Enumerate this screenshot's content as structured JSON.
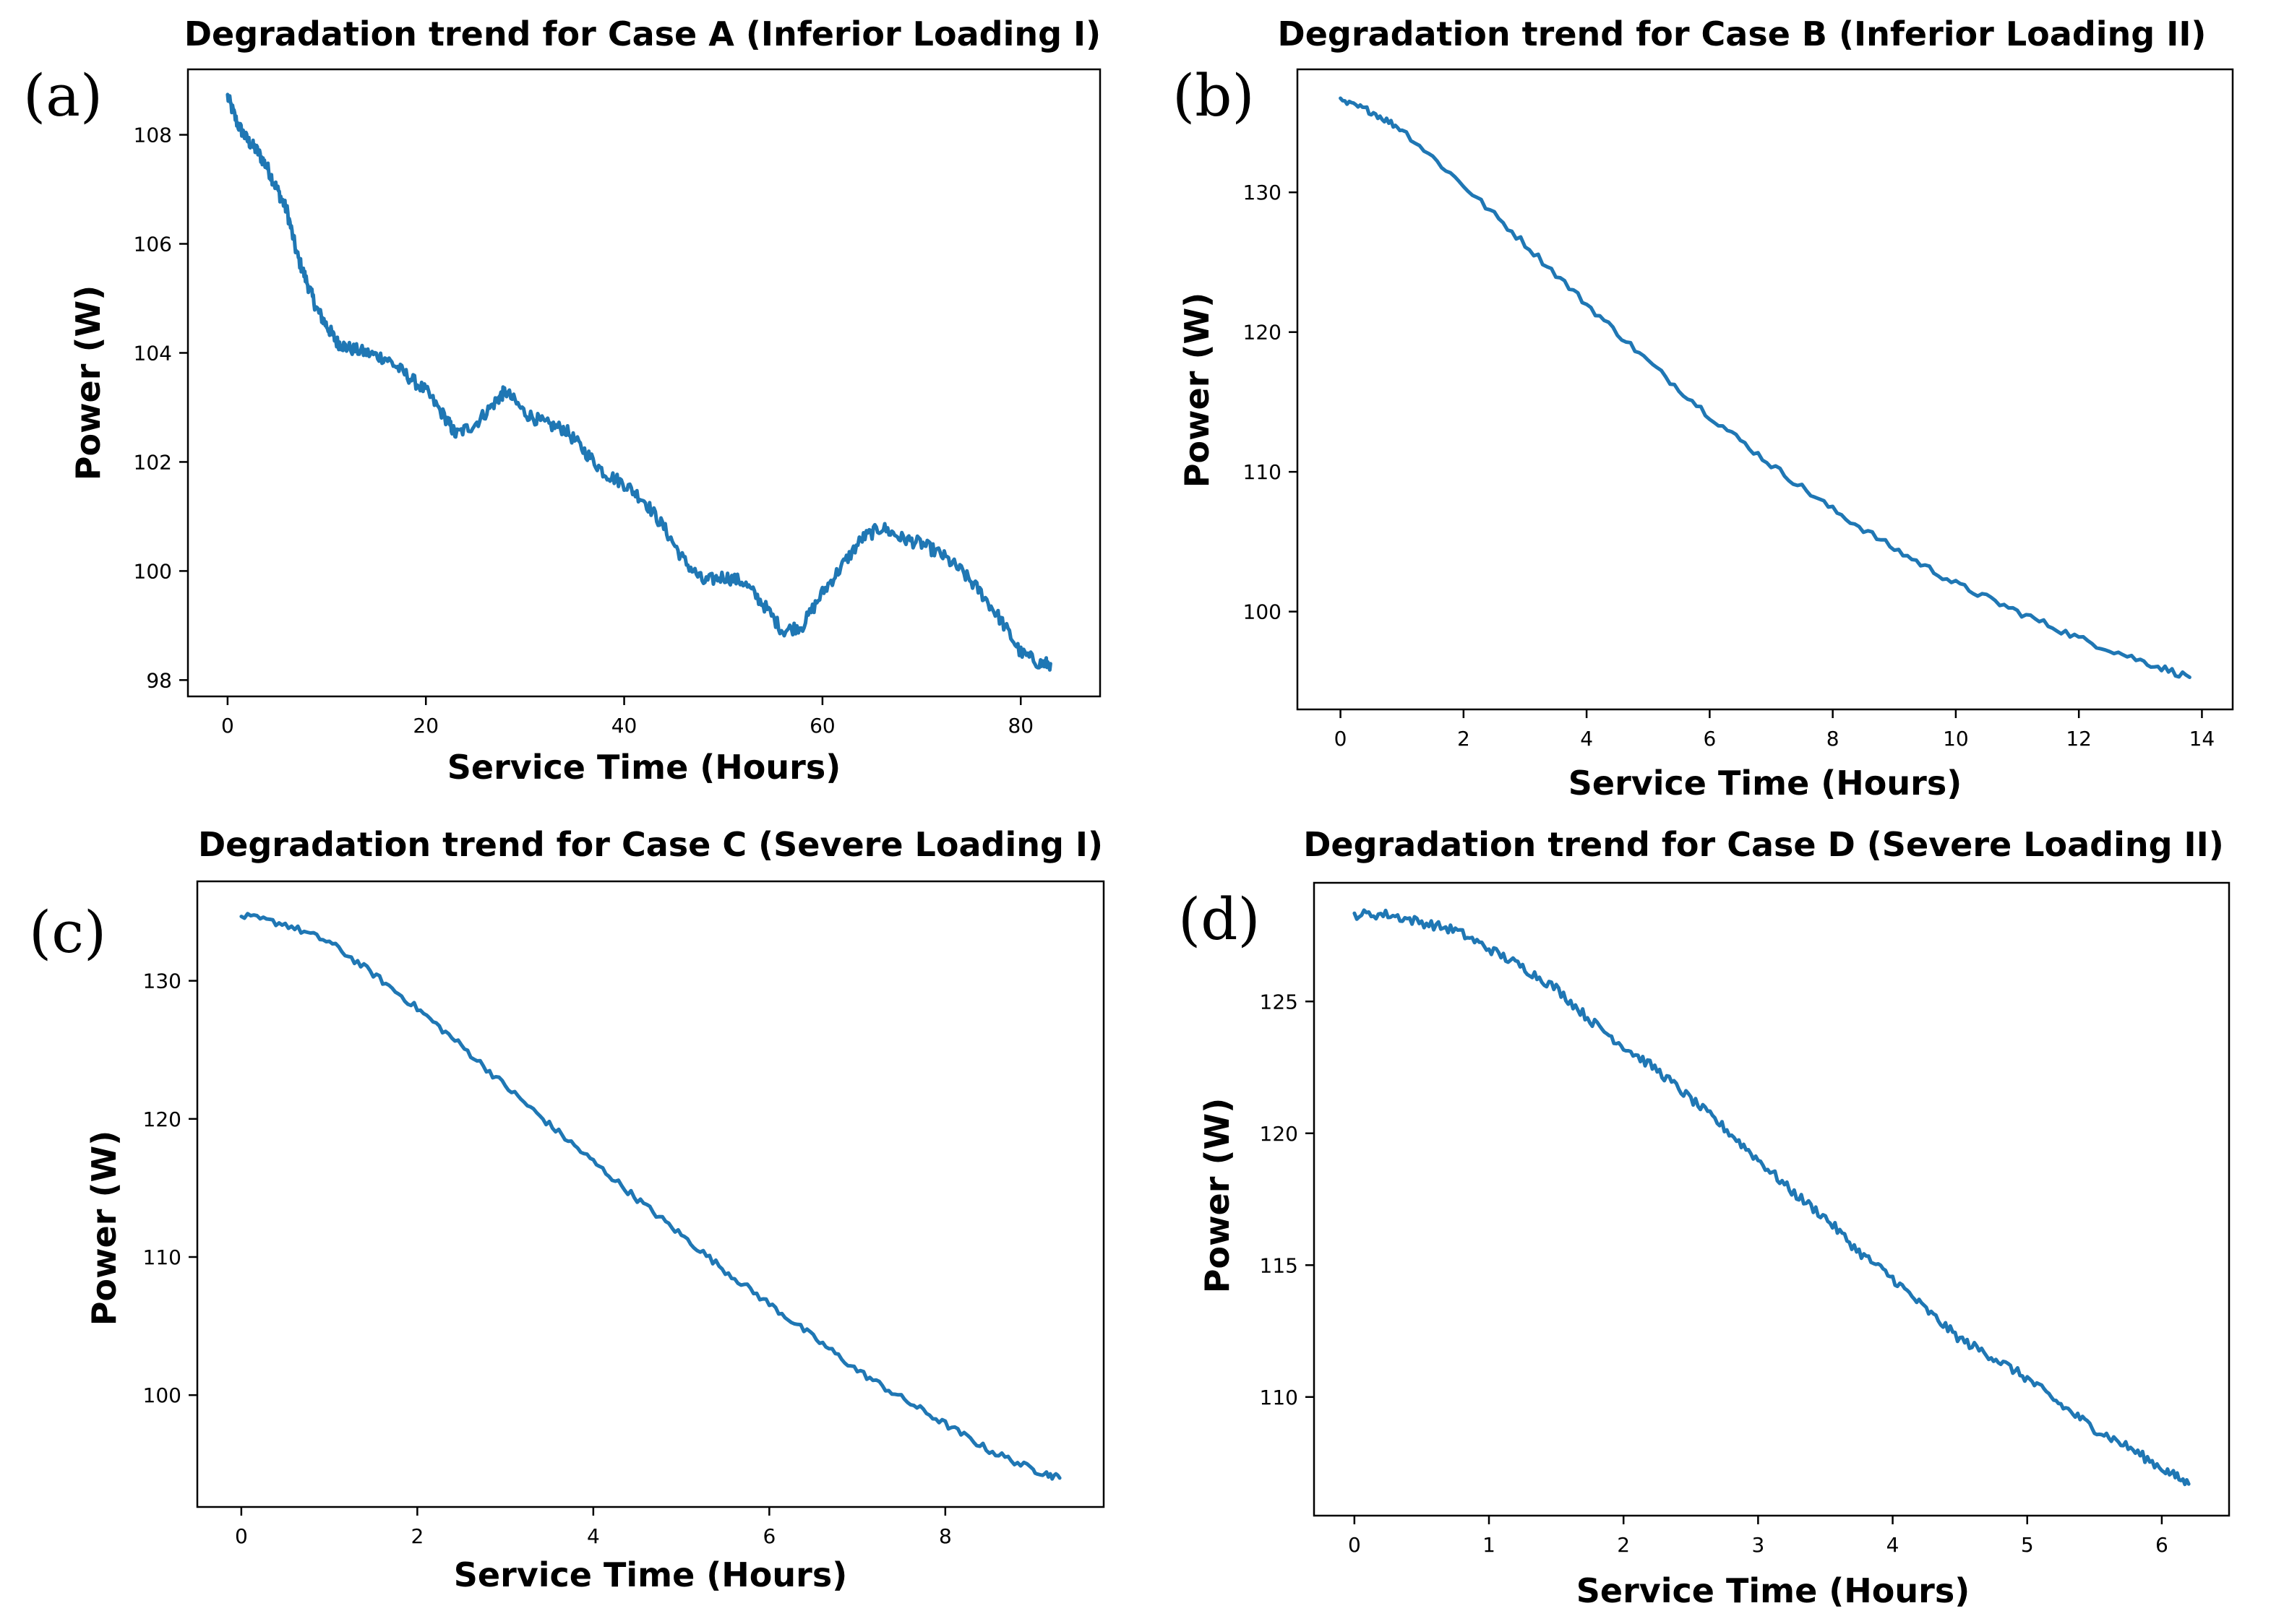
{
  "colors": {
    "series": "#1f77b4"
  },
  "chart_data": [
    {
      "type": "line",
      "panel_label": "(a)",
      "title": "Degradation trend for Case A (Inferior Loading I)",
      "xlabel": "Service Time (Hours)",
      "ylabel": "Power (W)",
      "xlim": [
        -4,
        88
      ],
      "ylim": [
        97.7,
        109.2
      ],
      "xticks": [
        0,
        20,
        40,
        60,
        80
      ],
      "xtick_labels": [
        "0",
        "20",
        "40",
        "60",
        "80"
      ],
      "yticks": [
        98,
        100,
        102,
        104,
        106,
        108
      ],
      "ytick_labels": [
        "98",
        "100",
        "102",
        "104",
        "106",
        "108"
      ],
      "series": [
        {
          "name": "Power",
          "x": [
            0,
            1,
            2,
            3,
            4,
            5,
            6,
            7,
            8,
            9,
            10,
            11,
            12,
            14,
            16,
            18,
            20,
            22,
            23,
            25,
            27,
            28,
            30,
            32,
            34,
            36,
            38,
            40,
            42,
            44,
            46,
            48,
            50,
            52,
            54,
            56,
            58,
            60,
            62,
            64,
            66,
            68,
            70,
            72,
            74,
            76,
            78,
            80,
            82,
            83
          ],
          "y": [
            108.7,
            108.2,
            107.9,
            107.7,
            107.4,
            107.0,
            106.6,
            105.8,
            105.3,
            104.8,
            104.5,
            104.2,
            104.1,
            104.0,
            103.9,
            103.6,
            103.3,
            102.8,
            102.5,
            102.7,
            103.1,
            103.3,
            102.9,
            102.7,
            102.6,
            102.2,
            101.8,
            101.6,
            101.3,
            100.8,
            100.2,
            99.8,
            99.9,
            99.8,
            99.4,
            98.9,
            99.0,
            99.6,
            100.1,
            100.6,
            100.8,
            100.6,
            100.5,
            100.3,
            100.0,
            99.6,
            99.1,
            98.5,
            98.3,
            98.3
          ]
        }
      ]
    },
    {
      "type": "line",
      "panel_label": "(b)",
      "title": "Degradation trend for Case B (Inferior Loading II)",
      "xlabel": "Service Time (Hours)",
      "ylabel": "Power (W)",
      "xlim": [
        -0.7,
        14.5
      ],
      "ylim": [
        93.0,
        138.8
      ],
      "xticks": [
        0,
        2,
        4,
        6,
        8,
        10,
        12,
        14
      ],
      "xtick_labels": [
        "0",
        "2",
        "4",
        "6",
        "8",
        "10",
        "12",
        "14"
      ],
      "yticks": [
        100,
        110,
        120,
        130
      ],
      "ytick_labels": [
        "100",
        "110",
        "120",
        "130"
      ],
      "series": [
        {
          "name": "Power",
          "x": [
            0.0,
            0.5,
            1.0,
            2.0,
            3.0,
            4.0,
            5.0,
            6.0,
            7.0,
            8.0,
            9.0,
            10.0,
            11.0,
            12.0,
            13.0,
            13.8
          ],
          "y": [
            136.5,
            135.8,
            134.5,
            130.5,
            126.3,
            122.0,
            117.9,
            114.0,
            110.5,
            107.3,
            104.5,
            102.0,
            100.0,
            98.1,
            96.5,
            95.3
          ]
        }
      ]
    },
    {
      "type": "line",
      "panel_label": "(c)",
      "title": "Degradation trend for Case C (Severe Loading I)",
      "xlabel": "Service Time (Hours)",
      "ylabel": "Power (W)",
      "xlim": [
        -0.5,
        9.8
      ],
      "ylim": [
        91.9,
        137.2
      ],
      "xticks": [
        0,
        2,
        4,
        6,
        8
      ],
      "xtick_labels": [
        "0",
        "2",
        "4",
        "6",
        "8"
      ],
      "yticks": [
        100,
        110,
        120,
        130
      ],
      "ytick_labels": [
        "100",
        "110",
        "120",
        "130"
      ],
      "series": [
        {
          "name": "Power",
          "x": [
            0.0,
            0.5,
            1.0,
            1.5,
            2.0,
            2.5,
            3.0,
            3.5,
            4.0,
            4.5,
            5.0,
            5.5,
            6.0,
            6.5,
            7.0,
            7.5,
            8.0,
            8.5,
            9.0,
            9.3
          ],
          "y": [
            134.7,
            134.1,
            132.8,
            130.5,
            128.0,
            125.3,
            122.4,
            119.6,
            116.9,
            114.2,
            111.6,
            109.0,
            106.6,
            104.2,
            101.8,
            99.8,
            97.9,
            96.0,
            94.6,
            94.0
          ]
        }
      ]
    },
    {
      "type": "line",
      "panel_label": "(d)",
      "title": "Degradation trend for Case D (Severe Loading II)",
      "xlabel": "Service Time (Hours)",
      "ylabel": "Power (W)",
      "xlim": [
        -0.3,
        6.5
      ],
      "ylim": [
        105.5,
        129.5
      ],
      "xticks": [
        0,
        1,
        2,
        3,
        4,
        5,
        6
      ],
      "xtick_labels": [
        "0",
        "1",
        "2",
        "3",
        "4",
        "5",
        "6"
      ],
      "yticks": [
        110,
        115,
        120,
        125
      ],
      "ytick_labels": [
        "110",
        "115",
        "120",
        "125"
      ],
      "series": [
        {
          "name": "Power",
          "x": [
            0.0,
            0.25,
            0.5,
            0.75,
            1.0,
            1.25,
            1.5,
            1.75,
            2.0,
            2.25,
            2.5,
            2.75,
            3.0,
            3.25,
            3.5,
            3.75,
            4.0,
            4.25,
            4.5,
            4.75,
            5.0,
            5.25,
            5.5,
            5.75,
            6.0,
            6.2
          ],
          "y": [
            128.3,
            128.3,
            128.0,
            127.7,
            127.0,
            126.3,
            125.5,
            124.3,
            123.3,
            122.4,
            121.3,
            120.2,
            119.0,
            117.8,
            116.8,
            115.5,
            114.5,
            113.3,
            112.2,
            111.5,
            110.7,
            109.7,
            108.8,
            108.1,
            107.3,
            106.7
          ]
        }
      ]
    }
  ]
}
